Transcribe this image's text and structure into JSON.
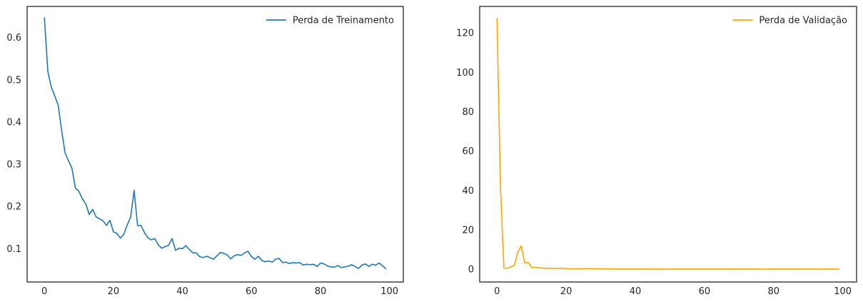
{
  "chart_data": [
    {
      "type": "line",
      "title": "",
      "xlabel": "",
      "ylabel": "",
      "xlim": [
        -5,
        104
      ],
      "ylim": [
        0.021,
        0.674
      ],
      "xticks": [
        0,
        20,
        40,
        60,
        80,
        100
      ],
      "yticks": [
        0.1,
        0.2,
        0.3,
        0.4,
        0.5,
        0.6
      ],
      "grid": false,
      "legend_position": "top-right",
      "series": [
        {
          "name": "Perda de Treinamento",
          "color": "#1f77b4",
          "x": [
            0,
            1,
            2,
            3,
            4,
            5,
            6,
            7,
            8,
            9,
            10,
            11,
            12,
            13,
            14,
            15,
            16,
            17,
            18,
            19,
            20,
            21,
            22,
            23,
            24,
            25,
            26,
            27,
            28,
            29,
            30,
            31,
            32,
            33,
            34,
            35,
            36,
            37,
            38,
            39,
            40,
            41,
            42,
            43,
            44,
            45,
            46,
            47,
            48,
            49,
            50,
            51,
            52,
            53,
            54,
            55,
            56,
            57,
            58,
            59,
            60,
            61,
            62,
            63,
            64,
            65,
            66,
            67,
            68,
            69,
            70,
            71,
            72,
            73,
            74,
            75,
            76,
            77,
            78,
            79,
            80,
            81,
            82,
            83,
            84,
            85,
            86,
            87,
            88,
            89,
            90,
            91,
            92,
            93,
            94,
            95,
            96,
            97,
            98,
            99
          ],
          "values": [
            0.648,
            0.52,
            0.483,
            0.462,
            0.44,
            0.38,
            0.327,
            0.308,
            0.29,
            0.243,
            0.236,
            0.218,
            0.206,
            0.181,
            0.193,
            0.175,
            0.171,
            0.166,
            0.155,
            0.167,
            0.14,
            0.136,
            0.125,
            0.134,
            0.156,
            0.175,
            0.238,
            0.155,
            0.155,
            0.138,
            0.126,
            0.121,
            0.124,
            0.109,
            0.101,
            0.105,
            0.108,
            0.124,
            0.096,
            0.101,
            0.1,
            0.107,
            0.098,
            0.09,
            0.09,
            0.081,
            0.079,
            0.082,
            0.079,
            0.075,
            0.083,
            0.091,
            0.089,
            0.085,
            0.076,
            0.083,
            0.086,
            0.084,
            0.09,
            0.094,
            0.081,
            0.075,
            0.082,
            0.072,
            0.069,
            0.071,
            0.068,
            0.075,
            0.077,
            0.067,
            0.068,
            0.065,
            0.067,
            0.066,
            0.067,
            0.061,
            0.063,
            0.062,
            0.063,
            0.058,
            0.066,
            0.064,
            0.059,
            0.057,
            0.056,
            0.06,
            0.055,
            0.057,
            0.058,
            0.062,
            0.058,
            0.053,
            0.061,
            0.064,
            0.058,
            0.063,
            0.061,
            0.066,
            0.059,
            0.052
          ]
        }
      ]
    },
    {
      "type": "line",
      "title": "",
      "xlabel": "",
      "ylabel": "",
      "xlim": [
        -5,
        104
      ],
      "ylim": [
        -6.5,
        133.5
      ],
      "xticks": [
        0,
        20,
        40,
        60,
        80,
        100
      ],
      "yticks": [
        0,
        20,
        40,
        60,
        80,
        100,
        120
      ],
      "grid": false,
      "legend_position": "top-right",
      "series": [
        {
          "name": "Perda de Validação",
          "color": "#ffa500",
          "x": [
            0,
            1,
            2,
            3,
            4,
            5,
            6,
            7,
            8,
            9,
            10,
            11,
            12,
            13,
            14,
            15,
            16,
            17,
            18,
            19,
            20,
            21,
            22,
            23,
            24,
            25,
            26,
            27,
            28,
            29,
            30,
            31,
            32,
            33,
            34,
            35,
            36,
            37,
            38,
            39,
            40,
            41,
            42,
            43,
            44,
            45,
            46,
            47,
            48,
            49,
            50,
            51,
            52,
            53,
            54,
            55,
            56,
            57,
            58,
            59,
            60,
            61,
            62,
            63,
            64,
            65,
            66,
            67,
            68,
            69,
            70,
            71,
            72,
            73,
            74,
            75,
            76,
            77,
            78,
            79,
            80,
            81,
            82,
            83,
            84,
            85,
            86,
            87,
            88,
            89,
            90,
            91,
            92,
            93,
            94,
            95,
            96,
            97,
            98,
            99
          ],
          "values": [
            127.5,
            42,
            0.6,
            0.5,
            1.2,
            2.0,
            8.6,
            11.8,
            3.3,
            3.4,
            0.9,
            0.9,
            0.8,
            0.6,
            0.5,
            0.4,
            0.5,
            0.4,
            0.5,
            0.5,
            0.3,
            0.3,
            0.2,
            0.2,
            0.2,
            0.3,
            0.3,
            0.3,
            0.2,
            0.2,
            0.2,
            0.2,
            0.2,
            0.2,
            0.1,
            0.1,
            0.1,
            0.1,
            0.1,
            0.1,
            0.1,
            0.1,
            0.1,
            0.1,
            0.0,
            0.1,
            0.1,
            0.1,
            0.0,
            0.0,
            0.1,
            0.1,
            0.1,
            0.1,
            0.1,
            0.1,
            0.1,
            0.1,
            0.1,
            0.1,
            0.1,
            0.1,
            0.1,
            0.1,
            0.1,
            0.1,
            0.1,
            0.1,
            0.1,
            0.0,
            0.1,
            0.1,
            0.1,
            0.1,
            0.1,
            0.1,
            0.0,
            0.0,
            0.1,
            0.1,
            0.1,
            0.1,
            0.1,
            0.1,
            0.1,
            0.1,
            0.1,
            0.1,
            0.0,
            0.1,
            0.1,
            0.1,
            0.0,
            0.0,
            0.1,
            0.1,
            0.1,
            0.1,
            0.1,
            0.1
          ]
        }
      ]
    }
  ]
}
